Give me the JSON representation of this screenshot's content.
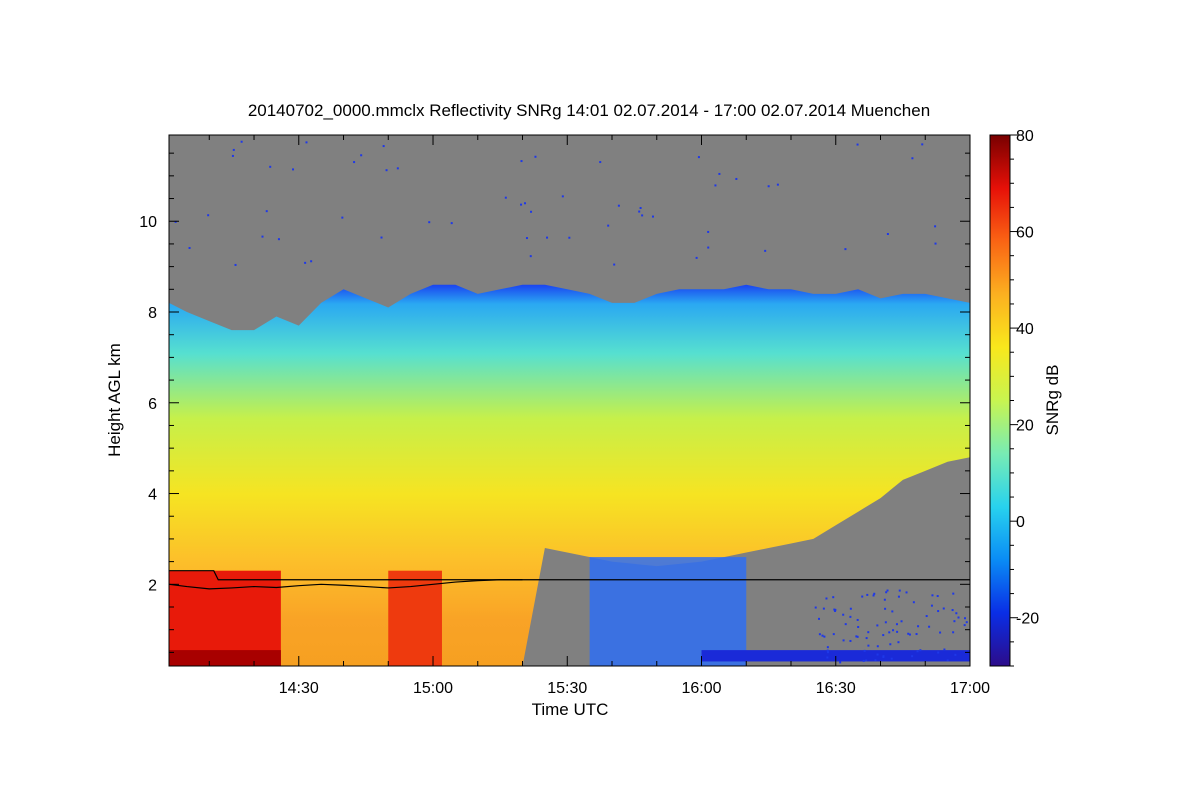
{
  "chart_data": {
    "type": "heatmap",
    "title": "20140702_0000.mmclx Reflectivity SNRg   14:01 02.07.2014 - 17:00 02.07.2014 Muenchen",
    "xlabel": "Time UTC",
    "ylabel": "Height AGL km",
    "colorbar_label": "SNRg dB",
    "x_range_min": [
      841,
      1020
    ],
    "y_range_km": [
      0.2,
      11.9
    ],
    "x_ticks": [
      {
        "label": "14:30",
        "value": 870
      },
      {
        "label": "15:00",
        "value": 900
      },
      {
        "label": "15:30",
        "value": 930
      },
      {
        "label": "16:00",
        "value": 960
      },
      {
        "label": "16:30",
        "value": 990
      },
      {
        "label": "17:00",
        "value": 1020
      }
    ],
    "y_ticks": [
      {
        "label": "2",
        "value": 2
      },
      {
        "label": "4",
        "value": 4
      },
      {
        "label": "6",
        "value": 6
      },
      {
        "label": "8",
        "value": 8
      },
      {
        "label": "10",
        "value": 10
      }
    ],
    "colorbar_range_db": [
      -30,
      80
    ],
    "colorbar_ticks": [
      {
        "label": "80",
        "value": 80
      },
      {
        "label": "60",
        "value": 60
      },
      {
        "label": "40",
        "value": 40
      },
      {
        "label": "20",
        "value": 20
      },
      {
        "label": "0",
        "value": 0
      },
      {
        "label": "-20",
        "value": -20
      }
    ],
    "no_signal_color": "#808080",
    "colormap": [
      "#2c0c8a",
      "#0a2ee6",
      "#0a8cf5",
      "#28d2ee",
      "#78ecb4",
      "#c8f450",
      "#f8e81c",
      "#fcb020",
      "#fa6414",
      "#e61008",
      "#780000"
    ],
    "cloud_top_km": {
      "times_min": [
        841,
        845,
        850,
        855,
        860,
        865,
        870,
        875,
        880,
        885,
        890,
        895,
        900,
        905,
        910,
        915,
        920,
        925,
        930,
        935,
        940,
        945,
        950,
        955,
        960,
        965,
        970,
        975,
        980,
        985,
        990,
        995,
        1000,
        1005,
        1010,
        1015,
        1020
      ],
      "values": [
        8.2,
        8.0,
        7.8,
        7.6,
        7.6,
        7.9,
        7.7,
        8.2,
        8.5,
        8.3,
        8.1,
        8.4,
        8.6,
        8.6,
        8.4,
        8.5,
        8.6,
        8.6,
        8.5,
        8.4,
        8.2,
        8.2,
        8.4,
        8.5,
        8.5,
        8.5,
        8.6,
        8.5,
        8.5,
        8.4,
        8.4,
        8.5,
        8.3,
        8.4,
        8.4,
        8.3,
        8.2
      ]
    },
    "cloud_base_km": {
      "times_min": [
        841,
        850,
        860,
        870,
        880,
        890,
        900,
        910,
        920,
        925,
        930,
        940,
        950,
        960,
        965,
        970,
        975,
        980,
        985,
        990,
        995,
        1000,
        1005,
        1010,
        1015,
        1020
      ],
      "values": [
        0.2,
        0.2,
        0.2,
        0.2,
        0.2,
        0.2,
        0.2,
        0.2,
        0.2,
        2.8,
        2.7,
        2.5,
        2.4,
        2.5,
        2.6,
        2.7,
        2.8,
        2.9,
        3.0,
        3.3,
        3.6,
        3.9,
        4.3,
        4.5,
        4.7,
        4.8
      ]
    },
    "boundary_line_km": {
      "times_min": [
        841,
        851,
        852,
        860,
        870,
        880,
        890,
        900,
        905,
        910,
        920,
        930,
        940,
        950,
        960,
        970,
        980,
        990,
        1000,
        1010,
        1020
      ],
      "values": [
        2.3,
        2.3,
        2.1,
        2.1,
        2.1,
        2.1,
        2.1,
        2.1,
        2.1,
        2.1,
        2.1,
        2.1,
        2.1,
        2.1,
        2.1,
        2.1,
        2.1,
        2.1,
        2.1,
        2.1,
        2.1
      ]
    },
    "layer_line_km": {
      "times_min": [
        841,
        845,
        850,
        855,
        860,
        865,
        870,
        875,
        880,
        885,
        890,
        895,
        900,
        905,
        910,
        915,
        920
      ],
      "values": [
        2.0,
        1.95,
        1.9,
        1.92,
        1.95,
        1.93,
        1.97,
        2.0,
        1.98,
        1.95,
        1.92,
        1.95,
        2.0,
        2.05,
        2.08,
        2.1,
        2.1
      ]
    }
  }
}
